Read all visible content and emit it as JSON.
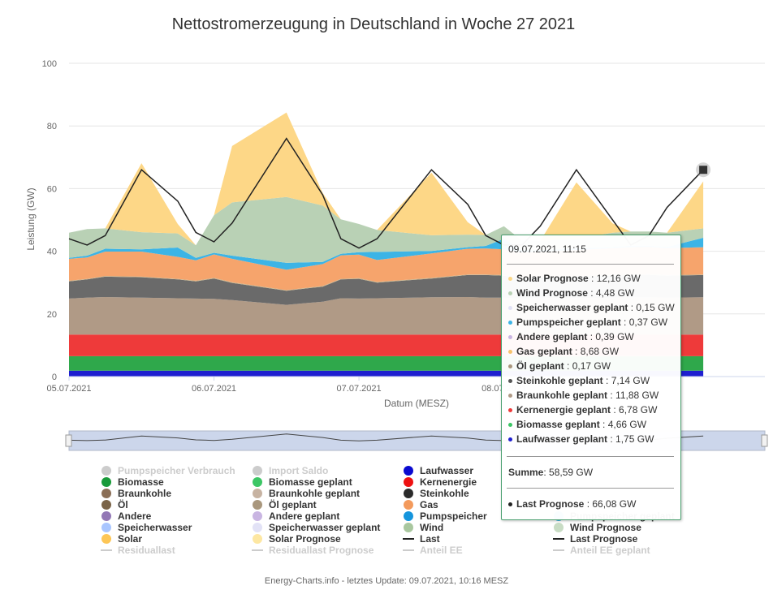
{
  "footer": "Energy-Charts.info - letztes Update: 09.07.2021, 10:16 MESZ",
  "chart_data": {
    "type": "area",
    "title": "Nettostromerzeugung in Deutschland in Woche 27 2021",
    "xlabel": "Datum (MESZ)",
    "ylabel": "Leistung (GW)",
    "ylim": [
      0,
      100
    ],
    "yticks": [
      "0",
      "20",
      "40",
      "60",
      "80",
      "100"
    ],
    "xticks": [
      {
        "label": "05.07.2021",
        "day": 0
      },
      {
        "label": "06.07.2021",
        "day": 1
      },
      {
        "label": "07.07.2021",
        "day": 2
      },
      {
        "label": "08.07.2021",
        "day": 3
      }
    ],
    "x_domain_days": [
      0,
      4.8
    ],
    "stack_order": [
      "Laufwasser",
      "Biomasse",
      "Kernenergie",
      "Braunkohle",
      "Steinkohle",
      "Öl",
      "Gas",
      "Pumpspeicher",
      "Wind",
      "Solar"
    ],
    "series": [
      {
        "name": "Laufwasser",
        "color": "#1f1fd0",
        "values": [
          1.9,
          1.9,
          1.9,
          1.9,
          1.9,
          1.9,
          1.9,
          1.9,
          1.9,
          1.9,
          1.9,
          1.9,
          1.9,
          1.9,
          1.9,
          1.9,
          1.9,
          1.9,
          1.9,
          1.9,
          1.9,
          1.9,
          1.9,
          1.9,
          1.9
        ]
      },
      {
        "name": "Biomasse",
        "color": "#2fa84b",
        "values": [
          4.6,
          4.6,
          4.6,
          4.6,
          4.6,
          4.6,
          4.6,
          4.6,
          4.6,
          4.6,
          4.6,
          4.6,
          4.6,
          4.6,
          4.6,
          4.6,
          4.6,
          4.6,
          4.6,
          4.6,
          4.6,
          4.6,
          4.6,
          4.6,
          4.6
        ]
      },
      {
        "name": "Kernenergie",
        "color": "#ee3a3a",
        "values": [
          6.9,
          6.9,
          6.9,
          6.9,
          6.9,
          6.9,
          6.9,
          6.9,
          6.9,
          6.9,
          6.9,
          6.9,
          6.9,
          6.9,
          6.9,
          6.9,
          6.9,
          6.9,
          6.9,
          6.9,
          6.9,
          6.9,
          6.9,
          6.9,
          6.9
        ]
      },
      {
        "name": "Braunkohle",
        "color": "#b09a86",
        "values": [
          11.5,
          11.8,
          12.0,
          11.8,
          11.6,
          11.5,
          11.4,
          11.0,
          9.5,
          10.5,
          11.6,
          11.5,
          11.6,
          11.9,
          12.0,
          11.8,
          11.8,
          11.5,
          11.8,
          11.7,
          11.8,
          11.9,
          11.9,
          11.8,
          11.9
        ]
      },
      {
        "name": "Steinkohle",
        "color": "#6a6a6a",
        "values": [
          5.5,
          5.8,
          6.5,
          6.5,
          6.0,
          5.5,
          6.5,
          5.5,
          4.5,
          4.8,
          6.0,
          6.3,
          5.0,
          6.0,
          7.0,
          7.2,
          7.0,
          6.5,
          6.4,
          6.8,
          7.0,
          7.1,
          7.2,
          7.0,
          7.1
        ]
      },
      {
        "name": "Öl",
        "color": "#c4b088",
        "values": [
          0.2,
          0.2,
          0.2,
          0.2,
          0.2,
          0.2,
          0.2,
          0.2,
          0.2,
          0.2,
          0.2,
          0.2,
          0.2,
          0.2,
          0.2,
          0.2,
          0.2,
          0.2,
          0.2,
          0.2,
          0.2,
          0.2,
          0.2,
          0.2,
          0.2
        ]
      },
      {
        "name": "Gas",
        "color": "#f6a46c",
        "values": [
          7.0,
          6.8,
          7.8,
          8.0,
          7.0,
          6.5,
          7.5,
          7.5,
          6.5,
          7.0,
          7.5,
          7.5,
          7.0,
          7.8,
          8.2,
          8.3,
          8.2,
          8.0,
          8.1,
          8.3,
          8.6,
          8.7,
          8.7,
          8.6,
          8.7
        ]
      },
      {
        "name": "Pumpspeicher",
        "color": "#3cb4e6",
        "values": [
          0.3,
          0.6,
          0.9,
          0.7,
          3.0,
          0.8,
          0.5,
          1.0,
          2.2,
          0.7,
          0.5,
          0.8,
          2.6,
          0.8,
          0.5,
          0.8,
          3.4,
          0.8,
          0.4,
          0.6,
          0.4,
          0.5,
          0.4,
          0.4,
          3.0
        ]
      },
      {
        "name": "Wind",
        "color": "#b9d1b5",
        "values": [
          8.0,
          8.5,
          6.5,
          5.5,
          4.5,
          4.0,
          12.0,
          17.0,
          21.0,
          18.0,
          11.0,
          9.0,
          7.0,
          5.0,
          4.0,
          3.5,
          4.0,
          3.0,
          3.0,
          3.0,
          4.5,
          4.5,
          4.5,
          4.5,
          3.0
        ]
      },
      {
        "name": "Solar",
        "color": "#fdd787",
        "values": [
          0,
          0,
          0,
          22,
          3,
          0,
          0,
          18,
          27,
          4,
          0,
          0,
          0,
          20,
          4,
          0,
          0,
          0,
          0,
          18,
          3,
          0,
          0,
          0,
          15
        ]
      }
    ],
    "hours": [
      0,
      3,
      6,
      12,
      18,
      21,
      24,
      27,
      36,
      42,
      45,
      48,
      51,
      60,
      66,
      69,
      72,
      75,
      78,
      84,
      90,
      93,
      96,
      99,
      105
    ],
    "load_series": {
      "name": "Last",
      "color": "#222222",
      "values": [
        44,
        42,
        45,
        66,
        56,
        46,
        43,
        49,
        76,
        58,
        44,
        41,
        44,
        66,
        55,
        45,
        42,
        42,
        48,
        66,
        50,
        42,
        45,
        54,
        66
      ]
    },
    "legend": [
      {
        "label": "Pumpspeicher Verbrauch",
        "color": "#cccccc",
        "active": false,
        "kind": "dot"
      },
      {
        "label": "Import Saldo",
        "color": "#cccccc",
        "active": false,
        "kind": "dot"
      },
      {
        "label": "Laufwasser",
        "color": "#0a0ad0",
        "active": true,
        "kind": "dot"
      },
      {
        "label": "Biomasse",
        "color": "#199a3a",
        "active": true,
        "kind": "dot"
      },
      {
        "label": "Biomasse geplant",
        "color": "#3cc665",
        "active": true,
        "kind": "dot"
      },
      {
        "label": "Kernenergie",
        "color": "#ee1111",
        "active": true,
        "kind": "dot"
      },
      {
        "label": "Braunkohle",
        "color": "#8b6f57",
        "active": true,
        "kind": "dot"
      },
      {
        "label": "Braunkohle geplant",
        "color": "#c7b3a2",
        "active": true,
        "kind": "dot"
      },
      {
        "label": "Steinkohle",
        "color": "#2b2b2b",
        "active": true,
        "kind": "dot"
      },
      {
        "label": "Öl",
        "color": "#7a6448",
        "active": true,
        "kind": "dot"
      },
      {
        "label": "Öl geplant",
        "color": "#a9977d",
        "active": true,
        "kind": "dot"
      },
      {
        "label": "Gas",
        "color": "#f39a5c",
        "active": true,
        "kind": "dot"
      },
      {
        "label": "Andere",
        "color": "#9378b6",
        "active": true,
        "kind": "dot"
      },
      {
        "label": "Andere geplant",
        "color": "#c9b5e2",
        "active": true,
        "kind": "dot"
      },
      {
        "label": "Pumpspeicher",
        "color": "#1595dd",
        "active": true,
        "kind": "dot"
      },
      {
        "label": "Speicherwasser",
        "color": "#a9c6ff",
        "active": true,
        "kind": "dot"
      },
      {
        "label": "Speicherwasser geplant",
        "color": "#e2e2f6",
        "active": true,
        "kind": "dot"
      },
      {
        "label": "Wind",
        "color": "#a9c79f",
        "active": true,
        "kind": "dot"
      },
      {
        "label": "Solar",
        "color": "#fdc656",
        "active": true,
        "kind": "dot"
      },
      {
        "label": "Solar Prognose",
        "color": "#fde7a2",
        "active": true,
        "kind": "dot"
      },
      {
        "label": "Last",
        "color": "#222222",
        "active": true,
        "kind": "line"
      },
      {
        "label": "Residuallast",
        "color": "#cccccc",
        "active": false,
        "kind": "line"
      },
      {
        "label": "Residuallast Prognose",
        "color": "#cccccc",
        "active": false,
        "kind": "line"
      },
      {
        "label": "Anteil EE",
        "color": "#cccccc",
        "active": false,
        "kind": "line"
      },
      {
        "label": "Pumpspeicher geplant",
        "color": "#3cb4e6",
        "active": true,
        "kind": "dot"
      },
      {
        "label": "Wind Prognose",
        "color": "#c8dcc4",
        "active": true,
        "kind": "dot"
      },
      {
        "label": "Last Prognose",
        "color": "#222222",
        "active": true,
        "kind": "line"
      },
      {
        "label": "Anteil EE geplant",
        "color": "#cccccc",
        "active": false,
        "kind": "line"
      }
    ],
    "tooltip": {
      "header": "09.07.2021, 11:15",
      "rows": [
        {
          "name": "Solar Prognose",
          "value": "12,16 GW",
          "color": "#fdd787"
        },
        {
          "name": "Wind Prognose",
          "value": "4,48 GW",
          "color": "#b9d1b5"
        },
        {
          "name": "Speicherwasser geplant",
          "value": "0,15 GW",
          "color": "#e2e2f6"
        },
        {
          "name": "Pumpspeicher geplant",
          "value": "0,37 GW",
          "color": "#3cb4e6"
        },
        {
          "name": "Andere geplant",
          "value": "0,39 GW",
          "color": "#c9b5e2"
        },
        {
          "name": "Gas geplant",
          "value": "8,68 GW",
          "color": "#f6c36c"
        },
        {
          "name": "Öl geplant",
          "value": "0,17 GW",
          "color": "#a9977d"
        },
        {
          "name": "Steinkohle geplant",
          "value": "7,14 GW",
          "color": "#555555"
        },
        {
          "name": "Braunkohle geplant",
          "value": "11,88 GW",
          "color": "#b09a86"
        },
        {
          "name": "Kernenergie geplant",
          "value": "6,78 GW",
          "color": "#ee3a3a"
        },
        {
          "name": "Biomasse geplant",
          "value": "4,66 GW",
          "color": "#3cc665"
        },
        {
          "name": "Laufwasser geplant",
          "value": "1,75 GW",
          "color": "#1f1fd0"
        }
      ],
      "sum_label": "Summe",
      "sum_value": "58,59 GW",
      "last_label": "Last Prognose",
      "last_value": "66,08 GW"
    }
  }
}
